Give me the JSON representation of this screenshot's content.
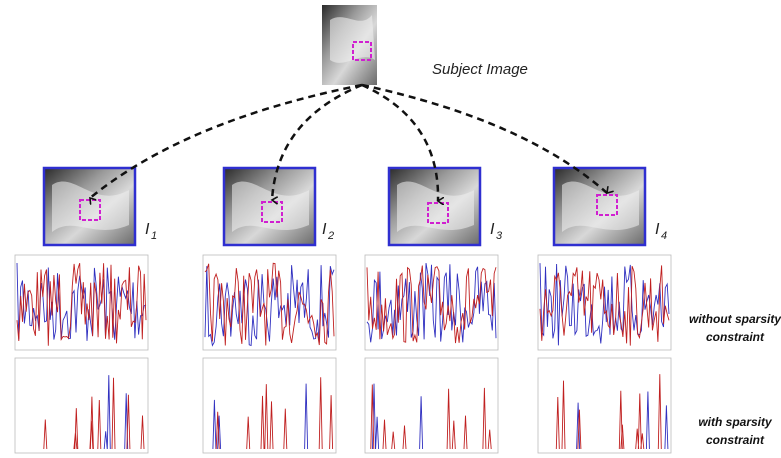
{
  "subject_label": "Subject Image",
  "atlases": [
    {
      "letter": "I",
      "subscript": "1"
    },
    {
      "letter": "I",
      "subscript": "2"
    },
    {
      "letter": "I",
      "subscript": "3"
    },
    {
      "letter": "I",
      "subscript": "4"
    }
  ],
  "rows": [
    {
      "label_lines": [
        "without sparsity",
        "constraint"
      ]
    },
    {
      "label_lines": [
        "with sparsity",
        "constraint"
      ]
    }
  ]
}
